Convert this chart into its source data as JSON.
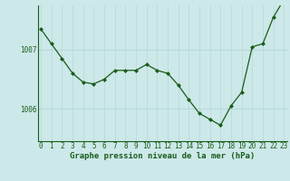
{
  "hours": [
    0,
    1,
    2,
    3,
    4,
    5,
    6,
    7,
    8,
    9,
    10,
    11,
    12,
    13,
    14,
    15,
    16,
    17,
    18,
    19,
    20,
    21,
    22,
    23
  ],
  "pressure": [
    1007.35,
    1007.1,
    1006.85,
    1006.6,
    1006.45,
    1006.42,
    1006.5,
    1006.65,
    1006.65,
    1006.65,
    1006.75,
    1006.65,
    1006.6,
    1006.4,
    1006.15,
    1005.92,
    1005.82,
    1005.72,
    1006.05,
    1006.28,
    1007.05,
    1007.1,
    1007.55,
    1007.85
  ],
  "line_color": "#1a5c1a",
  "marker_color": "#1a5c1a",
  "bg_color": "#cce8e8",
  "grid_color": "#b8d8d8",
  "xlabel": "Graphe pression niveau de la mer (hPa)",
  "xlabel_fontsize": 6.5,
  "tick_label_fontsize": 5.5,
  "ylim": [
    1005.45,
    1007.75
  ],
  "yticks": [
    1006.0,
    1007.0
  ],
  "xlim": [
    -0.3,
    23.3
  ]
}
